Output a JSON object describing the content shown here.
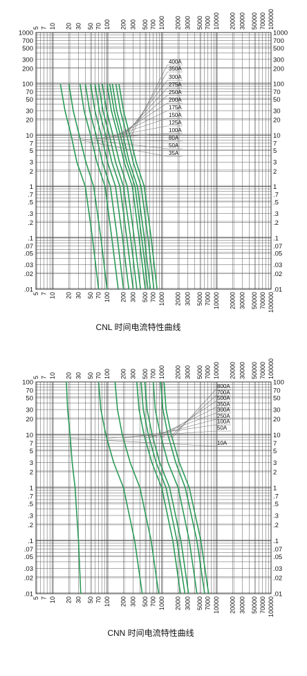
{
  "chart_data": [
    {
      "type": "line",
      "title": "CNL 时间电流特性曲线",
      "x_scale": "log",
      "y_scale": "log",
      "xlim": [
        5,
        10000
      ],
      "ylim": [
        0.01,
        1000
      ],
      "grid": true,
      "x_ticks": [
        "5",
        "7",
        "10",
        "20",
        "30",
        "50",
        "70",
        "100",
        "200",
        "300",
        "500",
        "700",
        "1000",
        "2000",
        "3000",
        "5000",
        "7000",
        "10000",
        "20000",
        "30000",
        "50000",
        "70000",
        "100000"
      ],
      "y_ticks": [
        "1000",
        "700",
        "500",
        "300",
        "200",
        "100",
        "70",
        "50",
        "30",
        "20",
        "10",
        "7",
        "5",
        "3",
        "2",
        "1",
        ".7",
        ".5",
        ".3",
        ".2",
        ".1",
        ".07",
        ".05",
        ".03",
        ".02",
        ".01"
      ],
      "series": [
        {
          "name": "400A",
          "x": [
            165,
            200,
            260,
            340,
            480,
            640,
            820
          ],
          "y": [
            100,
            30,
            10,
            3,
            1,
            0.1,
            0.01
          ]
        },
        {
          "name": "350A",
          "x": [
            145,
            175,
            230,
            300,
            420,
            560,
            720
          ],
          "y": [
            100,
            30,
            10,
            3,
            1,
            0.1,
            0.01
          ]
        },
        {
          "name": "300A",
          "x": [
            125,
            150,
            195,
            255,
            360,
            480,
            620
          ],
          "y": [
            100,
            30,
            10,
            3,
            1,
            0.1,
            0.01
          ]
        },
        {
          "name": "275A",
          "x": [
            112,
            135,
            175,
            230,
            325,
            430,
            560
          ],
          "y": [
            100,
            30,
            10,
            3,
            1,
            0.1,
            0.01
          ]
        },
        {
          "name": "250A",
          "x": [
            100,
            120,
            158,
            205,
            290,
            385,
            500
          ],
          "y": [
            100,
            30,
            10,
            3,
            1,
            0.1,
            0.01
          ]
        },
        {
          "name": "200A",
          "x": [
            82,
            98,
            128,
            168,
            235,
            315,
            410
          ],
          "y": [
            100,
            30,
            10,
            3,
            1,
            0.1,
            0.01
          ]
        },
        {
          "name": "175A",
          "x": [
            70,
            84,
            110,
            143,
            200,
            270,
            350
          ],
          "y": [
            100,
            30,
            10,
            3,
            1,
            0.1,
            0.01
          ]
        },
        {
          "name": "150A",
          "x": [
            60,
            72,
            94,
            122,
            172,
            230,
            300
          ],
          "y": [
            100,
            30,
            10,
            3,
            1,
            0.1,
            0.01
          ]
        },
        {
          "name": "125A",
          "x": [
            50,
            60,
            78,
            102,
            143,
            192,
            250
          ],
          "y": [
            100,
            30,
            10,
            3,
            1,
            0.1,
            0.01
          ]
        },
        {
          "name": "100A",
          "x": [
            40,
            48,
            63,
            82,
            115,
            154,
            200
          ],
          "y": [
            100,
            30,
            10,
            3,
            1,
            0.1,
            0.01
          ]
        },
        {
          "name": "80A",
          "x": [
            32,
            38,
            50,
            65,
            92,
            122,
            160
          ],
          "y": [
            100,
            30,
            10,
            3,
            1,
            0.1,
            0.01
          ]
        },
        {
          "name": "50A",
          "x": [
            20,
            24,
            31,
            41,
            57,
            77,
            100
          ],
          "y": [
            100,
            30,
            10,
            3,
            1,
            0.1,
            0.01
          ]
        },
        {
          "name": "35A",
          "x": [
            14,
            17,
            22,
            28,
            40,
            54,
            70
          ],
          "y": [
            100,
            30,
            10,
            3,
            1,
            0.1,
            0.01
          ]
        }
      ]
    },
    {
      "type": "line",
      "title": "CNN 时间电流特性曲线",
      "x_scale": "log",
      "y_scale": "log",
      "xlim": [
        5,
        10000
      ],
      "ylim": [
        0.01,
        100
      ],
      "grid": true,
      "x_ticks": [
        "5",
        "7",
        "10",
        "20",
        "30",
        "50",
        "70",
        "100",
        "200",
        "300",
        "500",
        "700",
        "1000",
        "2000",
        "3000",
        "5000",
        "7000",
        "10000",
        "20000",
        "30000",
        "50000",
        "70000",
        "100000"
      ],
      "y_ticks": [
        "100",
        "70",
        "50",
        "30",
        "20",
        "10",
        "7",
        "5",
        "3",
        "2",
        "1",
        ".7",
        ".5",
        ".3",
        ".2",
        ".1",
        ".07",
        ".05",
        ".03",
        ".02",
        ".01"
      ],
      "series": [
        {
          "name": "800A",
          "x": [
            1100,
            1200,
            1500,
            2100,
            3200,
            5200,
            7200
          ],
          "y": [
            100,
            30,
            10,
            3,
            1,
            0.1,
            0.01
          ]
        },
        {
          "name": "700A",
          "x": [
            950,
            1050,
            1300,
            1800,
            2700,
            4400,
            6100
          ],
          "y": [
            100,
            30,
            10,
            3,
            1,
            0.1,
            0.01
          ]
        },
        {
          "name": "500A",
          "x": [
            700,
            760,
            950,
            1300,
            2000,
            3200,
            4400
          ],
          "y": [
            100,
            30,
            10,
            3,
            1,
            0.1,
            0.01
          ]
        },
        {
          "name": "350A",
          "x": [
            490,
            540,
            670,
            920,
            1400,
            2250,
            3100
          ],
          "y": [
            100,
            30,
            10,
            3,
            1,
            0.1,
            0.01
          ]
        },
        {
          "name": "300A",
          "x": [
            420,
            460,
            570,
            790,
            1200,
            1900,
            2650
          ],
          "y": [
            100,
            30,
            10,
            3,
            1,
            0.1,
            0.01
          ]
        },
        {
          "name": "250A",
          "x": [
            350,
            385,
            475,
            660,
            1000,
            1600,
            2200
          ],
          "y": [
            100,
            30,
            10,
            3,
            1,
            0.1,
            0.01
          ]
        },
        {
          "name": "100A",
          "x": [
            140,
            155,
            190,
            265,
            400,
            640,
            880
          ],
          "y": [
            100,
            30,
            10,
            3,
            1,
            0.1,
            0.01
          ]
        },
        {
          "name": "50A",
          "x": [
            70,
            77,
            95,
            132,
            200,
            320,
            440
          ],
          "y": [
            100,
            30,
            10,
            3,
            1,
            0.1,
            0.01
          ]
        },
        {
          "name": "10A",
          "x": [
            18,
            19,
            21,
            23,
            26,
            30,
            33
          ],
          "y": [
            100,
            30,
            10,
            3,
            1,
            0.1,
            0.01
          ]
        }
      ]
    }
  ],
  "colors": {
    "curve": "#2a9a56",
    "grid": "#555555",
    "leader": "#777777",
    "text": "#111111"
  }
}
